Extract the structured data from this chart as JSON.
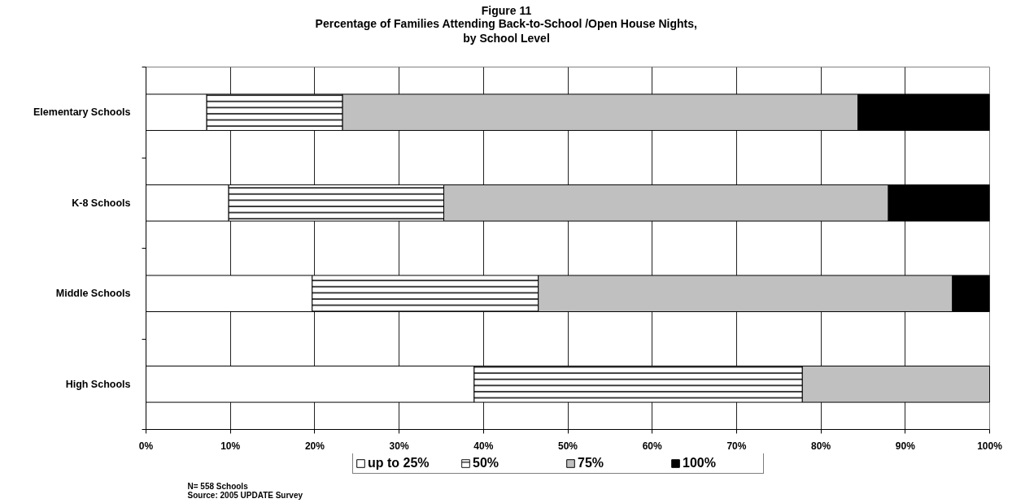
{
  "chart_data": {
    "type": "bar",
    "orientation": "horizontal",
    "stacked": true,
    "title": "Figure 11",
    "subtitle": "Percentage of Families Attending Back-to-School /Open House Nights,\nby School Level",
    "categories": [
      "Elementary Schools",
      "K-8 Schools",
      "Middle Schools",
      "High Schools"
    ],
    "series": [
      {
        "name": "up to 25%",
        "color": "#ffffff",
        "values": [
          7.2,
          9.8,
          19.7,
          38.9
        ]
      },
      {
        "name": "50%",
        "color": "#ffffff",
        "values": [
          16.1,
          25.5,
          26.8,
          38.9
        ]
      },
      {
        "name": "75%",
        "color": "#c0c0c0",
        "values": [
          61.1,
          52.7,
          49.1,
          22.2
        ]
      },
      {
        "name": "100%",
        "color": "#000000",
        "values": [
          15.6,
          12.0,
          4.4,
          0
        ]
      }
    ],
    "xlim": [
      0,
      100
    ],
    "xticks": [
      {
        "value": 0,
        "label": "0%"
      },
      {
        "value": 10,
        "label": "10%"
      },
      {
        "value": 20,
        "label": "20%"
      },
      {
        "value": 30,
        "label": "30%"
      },
      {
        "value": 40,
        "label": "40%"
      },
      {
        "value": 50,
        "label": "50%"
      },
      {
        "value": 60,
        "label": "60%"
      },
      {
        "value": 70,
        "label": "70%"
      },
      {
        "value": 80,
        "label": "80%"
      },
      {
        "value": 90,
        "label": "90%"
      },
      {
        "value": 100,
        "label": "100%"
      }
    ],
    "grid": "x",
    "legend": "bottom",
    "annotations": [
      "N= 558 Schools",
      "Source: 2005 UPDATE Survey"
    ]
  }
}
